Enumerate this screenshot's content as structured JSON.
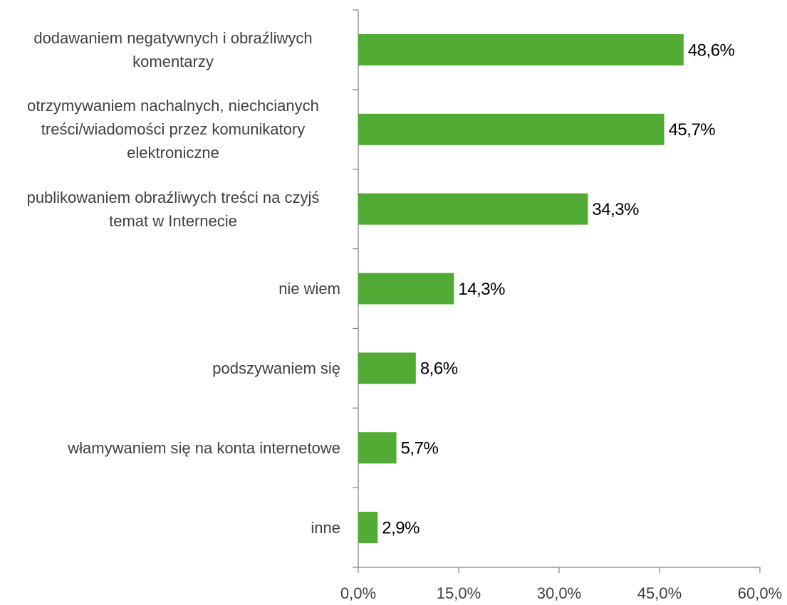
{
  "chart_data": {
    "type": "bar",
    "orientation": "horizontal",
    "categories": [
      "dodawaniem negatywnych i obraźliwych komentarzy",
      "otrzymywaniem nachalnych, niechcianych treści/wiadomości przez komunikatory elektroniczne",
      "publikowaniem obraźliwych treści na czyjś temat w Internecie",
      "nie wiem",
      "podszywaniem się",
      "włamywaniem się na konta internetowe",
      "inne"
    ],
    "values": [
      48.6,
      45.7,
      34.3,
      14.3,
      8.6,
      5.7,
      2.9
    ],
    "value_labels": [
      "48,6%",
      "45,7%",
      "34,3%",
      "14,3%",
      "8,6%",
      "5,7%",
      "2,9%"
    ],
    "color": "#52ab34",
    "xlim": [
      0,
      60
    ],
    "xticks": [
      {
        "value": 0,
        "label": "0,0%"
      },
      {
        "value": 15,
        "label": "15,0%"
      },
      {
        "value": 30,
        "label": "30,0%"
      },
      {
        "value": 45,
        "label": "45,0%"
      },
      {
        "value": 60,
        "label": "60,0%"
      }
    ],
    "grid": false
  }
}
